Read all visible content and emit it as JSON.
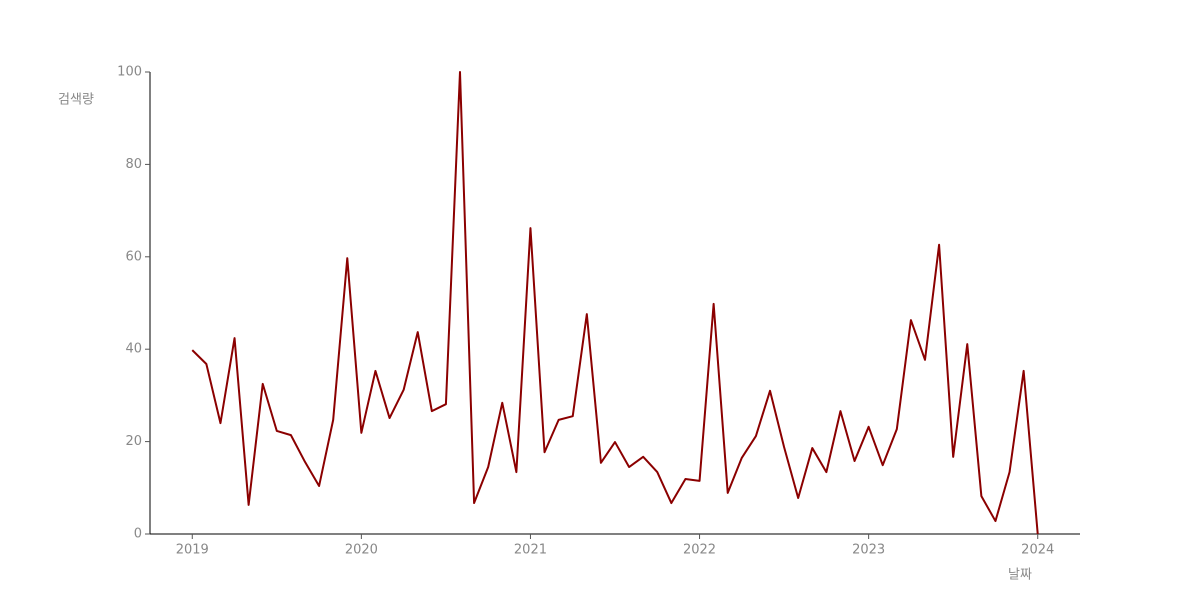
{
  "chart_data": {
    "type": "line",
    "x_label": "날짜",
    "y_label": "검색량",
    "x": [
      2019,
      2019.0833,
      2019.1667,
      2019.25,
      2019.3333,
      2019.4167,
      2019.5,
      2019.5833,
      2019.6667,
      2019.75,
      2019.8333,
      2019.9167,
      2020,
      2020.0833,
      2020.1667,
      2020.25,
      2020.3333,
      2020.4167,
      2020.5,
      2020.5833,
      2020.6667,
      2020.75,
      2020.8333,
      2020.9167,
      2021,
      2021.0833,
      2021.1667,
      2021.25,
      2021.3333,
      2021.4167,
      2021.5,
      2021.5833,
      2021.6667,
      2021.75,
      2021.8333,
      2021.9167,
      2022,
      2022.0833,
      2022.1667,
      2022.25,
      2022.3333,
      2022.4167,
      2022.5,
      2022.5833,
      2022.6667,
      2022.75,
      2022.8333,
      2022.9167,
      2023,
      2023.0833,
      2023.1667,
      2023.25,
      2023.3333,
      2023.4167,
      2023.5,
      2023.5833,
      2023.6667,
      2023.75,
      2023.8333,
      2023.9167,
      2024
    ],
    "series": [
      {
        "color": "#8b0000",
        "values": [
          39.8,
          36.8,
          24,
          42.4,
          6.3,
          32.5,
          22.3,
          21.4,
          15.6,
          10.4,
          24.7,
          59.7,
          21.9,
          35.3,
          25.1,
          31.2,
          43.7,
          26.6,
          28.1,
          100,
          6.7,
          14.5,
          28.4,
          13.4,
          66.2,
          17.7,
          24.7,
          25.5,
          47.6,
          15.4,
          19.9,
          14.5,
          16.7,
          13.4,
          6.7,
          11.9,
          11.5,
          49.8,
          8.9,
          16.5,
          21.2,
          31,
          18.8,
          7.8,
          18.6,
          13.4,
          26.6,
          15.8,
          23.2,
          14.9,
          22.7,
          46.3,
          37.7,
          62.6,
          16.7,
          41.1,
          8.2,
          2.8,
          13.4,
          35.3,
          0
        ]
      }
    ],
    "xlim": [
      2018.75,
      2024.25
    ],
    "xticks": [
      2019,
      2020,
      2021,
      2022,
      2023,
      2024
    ],
    "ylim": [
      0,
      100
    ],
    "yticks": [
      0,
      20,
      40,
      60,
      80,
      100
    ]
  }
}
